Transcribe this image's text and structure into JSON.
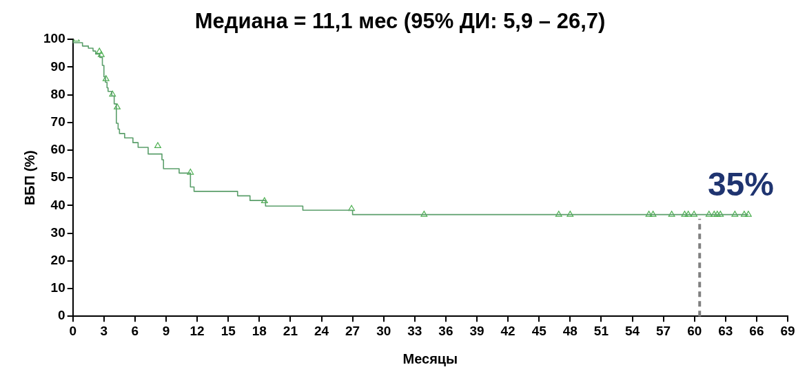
{
  "chart_data": {
    "type": "step",
    "title": "Медиана = 11,1 мес (95% ДИ: 5,9 – 26,7)",
    "xlabel": "Месяцы",
    "ylabel": "ВБП (%)",
    "xlim": [
      0,
      69
    ],
    "xticks": [
      0,
      3,
      6,
      9,
      12,
      15,
      18,
      21,
      24,
      27,
      30,
      33,
      36,
      39,
      42,
      45,
      48,
      51,
      54,
      57,
      60,
      63,
      66,
      69
    ],
    "ylim": [
      0,
      100
    ],
    "yticks": [
      0,
      10,
      20,
      30,
      40,
      50,
      60,
      70,
      80,
      90,
      100
    ],
    "grid": false,
    "legend": false,
    "series": [
      {
        "color": "#5a9e6a",
        "marker": "none",
        "x": [
          0,
          0.93,
          1.5,
          1.95,
          2.2,
          2.6,
          2.85,
          3.0,
          3.15,
          3.3,
          3.4,
          3.76,
          3.99,
          4.2,
          4.37,
          4.5,
          5.0,
          5.8,
          6.3,
          7.27,
          8.6,
          8.75,
          10.26,
          11.35,
          11.7,
          15.9,
          17.1,
          18.6,
          22.2,
          27.0,
          31.6,
          65.2
        ],
        "values": [
          100,
          98.8,
          97.6,
          96.8,
          95.8,
          94.7,
          93.5,
          90.6,
          86.5,
          84.5,
          82.5,
          81.2,
          79.6,
          76.7,
          69.7,
          67.6,
          66,
          64.4,
          62.7,
          61,
          58.6,
          56.5,
          53.3,
          51.7,
          46.7,
          45.1,
          43.5,
          41.8,
          39.8,
          38.3,
          36.7,
          36.7
        ]
      },
      {
        "type": "scatter",
        "color": "#4caf50",
        "marker": "triangle",
        "x": [
          0.35,
          2.56,
          2.74,
          3.2,
          3.83,
          4.28,
          8.2,
          11.35,
          18.5,
          26.9,
          33.9,
          46.9,
          48.0,
          55.6,
          56.0,
          57.8,
          59.05,
          59.4,
          59.96,
          61.4,
          61.9,
          62.2,
          62.5,
          63.9,
          64.8,
          65.2
        ],
        "values": [
          100,
          95.6,
          94.4,
          85.7,
          80.1,
          75.5,
          61.5,
          51.9,
          41.6,
          38.8,
          36.7,
          36.7,
          36.7,
          36.7,
          36.7,
          36.7,
          36.7,
          36.7,
          36.7,
          36.7,
          36.7,
          36.7,
          36.7,
          36.7,
          36.7,
          36.7
        ]
      }
    ],
    "ref_lines": [
      {
        "axis": "x",
        "value": 60.5,
        "color": "#808080",
        "line_style": "dashed"
      }
    ],
    "annotations": [
      "35%"
    ]
  }
}
